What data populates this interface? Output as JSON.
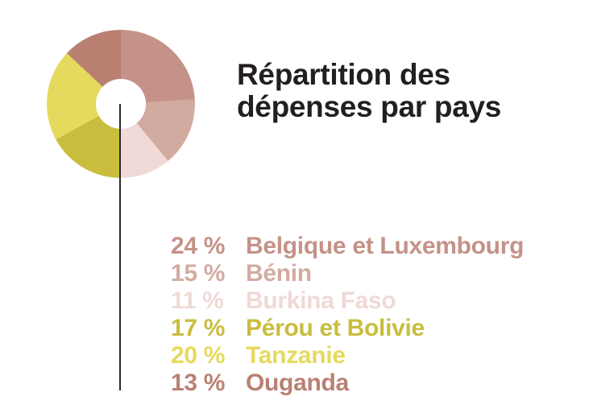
{
  "title": {
    "line1": "Répartition des",
    "line2": "dépenses par pays",
    "color": "#231f20"
  },
  "chart_data": {
    "type": "pie",
    "style": "donut",
    "title": "Répartition des dépenses par pays",
    "categories": [
      "Belgique et Luxembourg",
      "Bénin",
      "Burkina Faso",
      "Pérou et Bolivie",
      "Tanzanie",
      "Ouganda"
    ],
    "values": [
      24,
      15,
      11,
      17,
      20,
      13
    ],
    "unit": "%",
    "colors": [
      "#c49288",
      "#d2aba0",
      "#f0d9d6",
      "#c9bd3e",
      "#e5da5e",
      "#b98072"
    ],
    "start_angle_deg": 0,
    "direction": "clockwise",
    "hole_color": "#ffffff",
    "pointer_line_color": "#2b2b2b",
    "legend_position": "below-right"
  },
  "legend": {
    "items": [
      {
        "percent_label": "24 %",
        "name": "Belgique et Luxembourg",
        "color": "#c49288"
      },
      {
        "percent_label": "15 %",
        "name": "Bénin",
        "color": "#d2aba0"
      },
      {
        "percent_label": "11 %",
        "name": "Burkina Faso",
        "color": "#f0d9d6"
      },
      {
        "percent_label": "17 %",
        "name": "Pérou et Bolivie",
        "color": "#c9bd3e"
      },
      {
        "percent_label": "20 %",
        "name": "Tanzanie",
        "color": "#e5da5e"
      },
      {
        "percent_label": "13 %",
        "name": "Ouganda",
        "color": "#b98072"
      }
    ]
  }
}
